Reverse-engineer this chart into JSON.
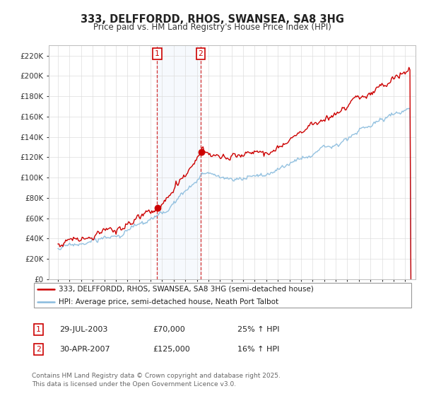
{
  "title": "333, DELFFORDD, RHOS, SWANSEA, SA8 3HG",
  "subtitle": "Price paid vs. HM Land Registry's House Price Index (HPI)",
  "bg_color": "#ffffff",
  "grid_color": "#dddddd",
  "sale1_date": 2003.57,
  "sale1_price": 70000,
  "sale2_date": 2007.33,
  "sale2_price": 125000,
  "legend_line1": "333, DELFFORDD, RHOS, SWANSEA, SA8 3HG (semi-detached house)",
  "legend_line2": "HPI: Average price, semi-detached house, Neath Port Talbot",
  "footer": "Contains HM Land Registry data © Crown copyright and database right 2025.\nThis data is licensed under the Open Government Licence v3.0.",
  "red_color": "#cc0000",
  "blue_color": "#88bbdd",
  "ylim_max": 230000,
  "ylim_min": 0,
  "sale1_text": "29-JUL-2003",
  "sale1_price_text": "£70,000",
  "sale1_hpi_text": "25% ↑ HPI",
  "sale2_text": "30-APR-2007",
  "sale2_price_text": "£125,000",
  "sale2_hpi_text": "16% ↑ HPI"
}
